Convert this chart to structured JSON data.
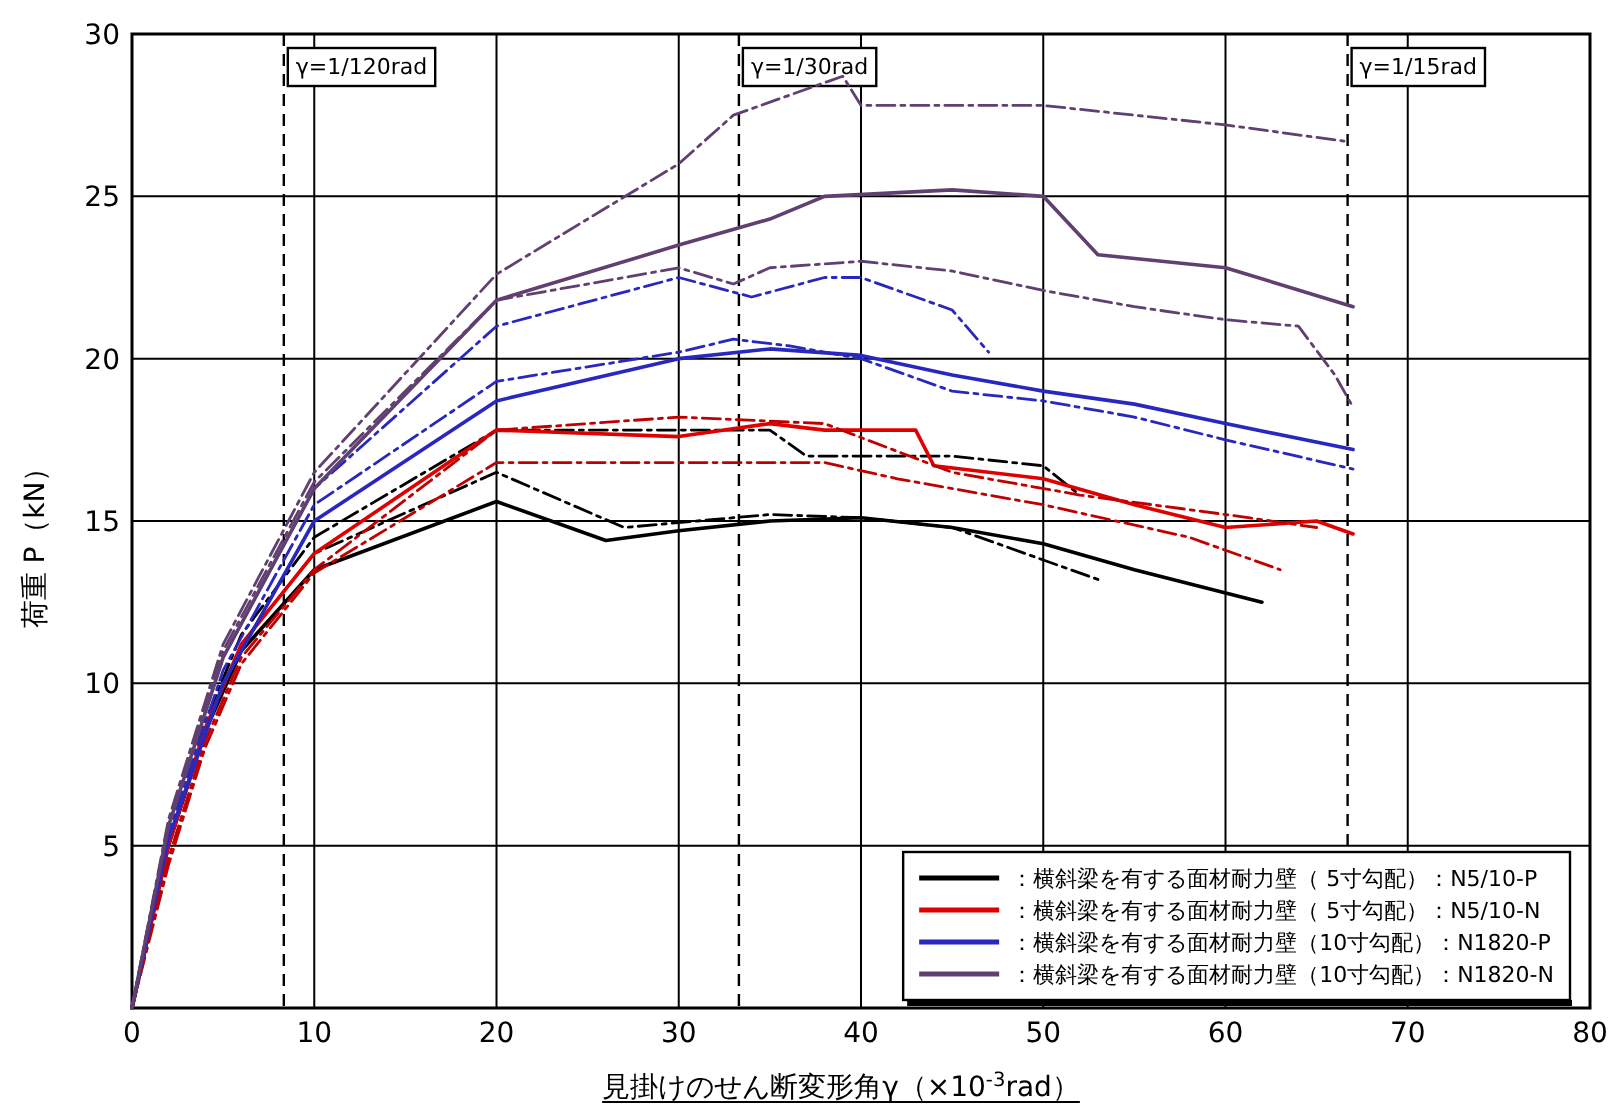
{
  "chart_data": {
    "type": "line",
    "xlabel": "見掛けのせん断変形角γ（×10$^{-3}$rad）",
    "ylabel": "荷重 P（kN）",
    "xlim": [
      0,
      80
    ],
    "ylim": [
      0,
      30
    ],
    "xticks": [
      0,
      10,
      20,
      30,
      40,
      50,
      60,
      70,
      80
    ],
    "yticks": [
      {
        "value": 0,
        "label": null
      },
      5,
      10,
      15,
      20,
      25,
      30
    ],
    "grid": true,
    "legend": "bottom right",
    "marker": "none",
    "ref_lines": [
      {
        "axis": "x",
        "value": 8.33,
        "line_style": "dashed",
        "color": "#000000"
      },
      {
        "axis": "x",
        "value": 33.3,
        "line_style": "dashed",
        "color": "#000000"
      },
      {
        "axis": "x",
        "value": 66.7,
        "line_style": "dashed",
        "color": "#000000"
      }
    ],
    "annotations": [
      "γ=1/120rad",
      "γ=1/30rad",
      "γ=1/15rad"
    ],
    "series": [
      {
        "name": "：横斜梁を有する面材耐力壁（ 5寸勾配）：N5/10-P",
        "color": "#000000",
        "line_style": "solid",
        "x": [
          0,
          2,
          4,
          6,
          10,
          20,
          26,
          30,
          35,
          40,
          45,
          50,
          55,
          62
        ],
        "values": [
          0,
          5,
          8.5,
          11,
          13.5,
          15.6,
          14.4,
          14.7,
          15,
          15.1,
          14.8,
          14.3,
          13.5,
          12.5
        ]
      },
      {
        "color": "#000000",
        "line_style": "dashed",
        "x": [
          0,
          2,
          4,
          6,
          10,
          20,
          27,
          35,
          40,
          45,
          50,
          53
        ],
        "values": [
          0,
          5,
          8.6,
          11.2,
          14,
          16.5,
          14.8,
          15.2,
          15.1,
          14.8,
          13.8,
          13.2
        ]
      },
      {
        "color": "#000000",
        "line_style": "dashed",
        "x": [
          0,
          2,
          4,
          6,
          10,
          20,
          30,
          35,
          37,
          40,
          45,
          50,
          52
        ],
        "values": [
          0,
          5.2,
          8.8,
          11.5,
          14.5,
          17.8,
          17.8,
          17.8,
          17,
          17,
          17,
          16.7,
          15.8
        ]
      },
      {
        "name": "：横斜梁を有する面材耐力壁（ 5寸勾配）：N5/10-N",
        "color": "#e00000",
        "line_style": "solid",
        "x": [
          0,
          2,
          4,
          6,
          10,
          20,
          30,
          35,
          38,
          43,
          44,
          50,
          55,
          60,
          65,
          67
        ],
        "values": [
          0,
          5,
          8.6,
          11.2,
          14,
          17.8,
          17.6,
          18,
          17.8,
          17.8,
          16.7,
          16.3,
          15.5,
          14.8,
          15,
          14.6
        ]
      },
      {
        "color": "#c00000",
        "line_style": "dashed",
        "x": [
          0,
          2,
          4,
          6,
          10,
          20,
          30,
          38,
          45,
          52,
          60,
          65
        ],
        "values": [
          0,
          4.6,
          8.2,
          10.8,
          13.5,
          17.8,
          18.2,
          18,
          16.5,
          15.8,
          15.2,
          14.8
        ]
      },
      {
        "color": "#c00000",
        "line_style": "dashed",
        "x": [
          0,
          2,
          4,
          6,
          10,
          20,
          30,
          38,
          42,
          50,
          58,
          63
        ],
        "values": [
          0,
          4.4,
          8,
          10.6,
          13.4,
          16.8,
          16.8,
          16.8,
          16.3,
          15.5,
          14.5,
          13.5
        ]
      },
      {
        "name": "：横斜梁を有する面材耐力壁（10寸勾配）：N1820-P",
        "color": "#2828c0",
        "line_style": "solid",
        "x": [
          0,
          2,
          5,
          10,
          20,
          30,
          35,
          40,
          45,
          50,
          55,
          60,
          67
        ],
        "values": [
          0,
          5.2,
          10,
          15,
          18.7,
          20,
          20.3,
          20.1,
          19.5,
          19,
          18.6,
          18,
          17.2
        ]
      },
      {
        "color": "#2828c0",
        "line_style": "dashed",
        "x": [
          0,
          2,
          5,
          10,
          20,
          30,
          33,
          36,
          40,
          45,
          50,
          55,
          60,
          67
        ],
        "values": [
          0,
          5.4,
          10.4,
          15.5,
          19.3,
          20.2,
          20.6,
          20.4,
          20,
          19,
          18.7,
          18.2,
          17.5,
          16.6
        ]
      },
      {
        "color": "#2828c0",
        "line_style": "dashed",
        "x": [
          0,
          2,
          5,
          10,
          20,
          30,
          34,
          38,
          40,
          45,
          47
        ],
        "values": [
          0,
          5.6,
          10.8,
          16,
          21,
          22.5,
          21.9,
          22.5,
          22.5,
          21.5,
          20.2
        ]
      },
      {
        "name": "：横斜梁を有する面材耐力壁（10寸勾配）：N1820-N",
        "color": "#604070",
        "line_style": "solid",
        "x": [
          0,
          2,
          5,
          10,
          20,
          30,
          35,
          38,
          45,
          50,
          53,
          60,
          67
        ],
        "values": [
          0,
          5.6,
          10.8,
          16,
          21.8,
          23.5,
          24.3,
          25,
          25.2,
          25,
          23.2,
          22.8,
          21.6
        ]
      },
      {
        "color": "#604070",
        "line_style": "dashed",
        "x": [
          0,
          2,
          5,
          10,
          20,
          30,
          33,
          38,
          39,
          40,
          50,
          55,
          60,
          66.5
        ],
        "values": [
          0,
          5.8,
          11.2,
          16.5,
          22.6,
          26,
          27.5,
          28.5,
          28.7,
          27.8,
          27.8,
          27.5,
          27.2,
          26.7
        ]
      },
      {
        "color": "#604070",
        "line_style": "dashed",
        "x": [
          0,
          2,
          5,
          10,
          20,
          30,
          33,
          35,
          40,
          45,
          50,
          55,
          60,
          64,
          66,
          67
        ],
        "values": [
          0,
          5.7,
          11,
          16.2,
          21.8,
          22.8,
          22.3,
          22.8,
          23,
          22.7,
          22.1,
          21.6,
          21.2,
          21,
          19.5,
          18.5
        ]
      }
    ]
  }
}
